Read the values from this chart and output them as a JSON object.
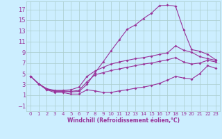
{
  "bg_color": "#cceeff",
  "grid_color": "#aacccc",
  "line_color": "#993399",
  "xlabel": "Windchill (Refroidissement éolien,°C)",
  "xlim": [
    -0.5,
    23.5
  ],
  "ylim": [
    -2.0,
    18.5
  ],
  "xticks": [
    0,
    1,
    2,
    3,
    4,
    5,
    6,
    7,
    8,
    9,
    10,
    11,
    12,
    13,
    14,
    15,
    16,
    17,
    18,
    19,
    20,
    21,
    22,
    23
  ],
  "yticks": [
    -1,
    1,
    3,
    5,
    7,
    9,
    11,
    13,
    15,
    17
  ],
  "curve_main_x": [
    0,
    1,
    2,
    3,
    4,
    5,
    6,
    7,
    8,
    9,
    10,
    11,
    12,
    13,
    14,
    15,
    16,
    17,
    18,
    19,
    20,
    21,
    22,
    23
  ],
  "curve_main_y": [
    4.5,
    3.1,
    2.2,
    1.7,
    1.7,
    1.6,
    1.7,
    3.0,
    5.2,
    7.2,
    9.3,
    11.3,
    13.3,
    14.1,
    15.3,
    16.3,
    17.7,
    17.8,
    17.6,
    13.2,
    9.5,
    9.2,
    8.6,
    7.6
  ],
  "curve_hi_x": [
    0,
    1,
    2,
    3,
    4,
    5,
    6,
    7,
    8,
    9,
    10,
    11,
    12,
    13,
    14,
    15,
    16,
    17,
    18,
    19,
    20,
    21,
    22,
    23
  ],
  "curve_hi_y": [
    4.5,
    3.1,
    2.2,
    1.9,
    1.9,
    2.0,
    2.5,
    4.5,
    5.5,
    6.2,
    6.8,
    7.2,
    7.5,
    7.8,
    8.0,
    8.3,
    8.6,
    8.9,
    10.2,
    9.4,
    9.0,
    8.2,
    7.8,
    7.5
  ],
  "curve_mid_x": [
    0,
    1,
    2,
    3,
    4,
    5,
    6,
    7,
    8,
    9,
    10,
    11,
    12,
    13,
    14,
    15,
    16,
    17,
    18,
    19,
    20,
    21,
    22,
    23
  ],
  "curve_mid_y": [
    4.5,
    3.1,
    2.0,
    1.8,
    1.8,
    1.7,
    1.9,
    3.5,
    4.8,
    5.2,
    5.6,
    5.9,
    6.2,
    6.5,
    6.8,
    7.0,
    7.3,
    7.6,
    8.0,
    7.2,
    6.8,
    7.0,
    7.5,
    7.2
  ],
  "curve_low_x": [
    0,
    1,
    2,
    3,
    4,
    5,
    6,
    7,
    8,
    9,
    10,
    11,
    12,
    13,
    14,
    15,
    16,
    17,
    18,
    19,
    20,
    21,
    22,
    23
  ],
  "curve_low_y": [
    4.5,
    3.1,
    2.0,
    1.5,
    1.5,
    1.2,
    1.2,
    2.0,
    1.8,
    1.5,
    1.5,
    1.8,
    2.0,
    2.3,
    2.5,
    2.8,
    3.2,
    3.8,
    4.5,
    4.2,
    4.0,
    5.0,
    6.5,
    6.0
  ]
}
